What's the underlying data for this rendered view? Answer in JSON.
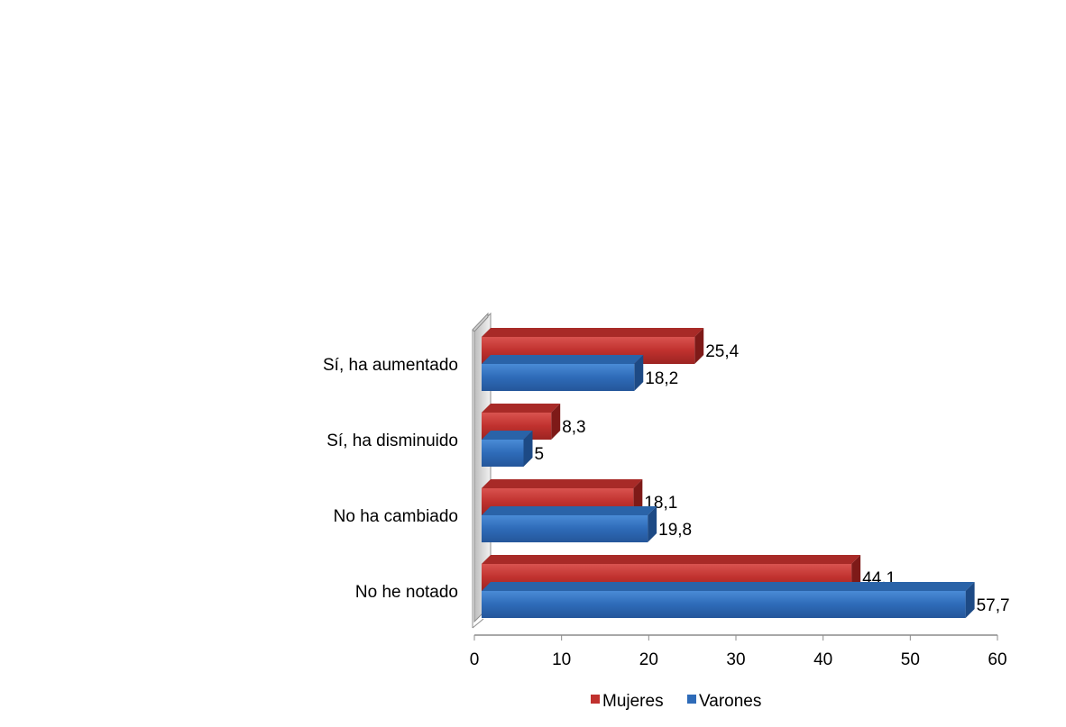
{
  "chart_data": {
    "type": "bar",
    "orientation": "horizontal",
    "style": "3d",
    "categories": [
      "Sí, ha aumentado",
      "Sí, ha disminuido",
      "No ha cambiado",
      "No he notado"
    ],
    "series": [
      {
        "name": "Mujeres",
        "values": [
          25.4,
          8.3,
          18.1,
          44.1
        ],
        "color": "#C0312E"
      },
      {
        "name": "Varones",
        "values": [
          18.2,
          5,
          19.8,
          57.7
        ],
        "color": "#2E6BB8"
      }
    ],
    "data_labels": {
      "Mujeres": [
        "25,4",
        "8,3",
        "18,1",
        "44,1"
      ],
      "Varones": [
        "18,2",
        "5",
        "19,8",
        "57,7"
      ]
    },
    "x_ticks": [
      "0",
      "10",
      "20",
      "30",
      "40",
      "50",
      "60"
    ],
    "xlim": [
      0,
      60
    ],
    "grid": false,
    "legend": "bottom"
  }
}
